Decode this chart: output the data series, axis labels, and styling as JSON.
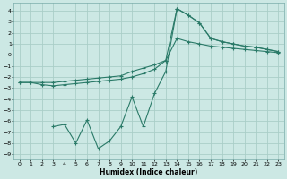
{
  "xlabel": "Humidex (Indice chaleur)",
  "bg_color": "#cce8e4",
  "grid_color": "#aacec8",
  "line_color": "#2a7a68",
  "xlim": [
    -0.5,
    23.5
  ],
  "ylim": [
    -9.5,
    4.7
  ],
  "xticks": [
    0,
    1,
    2,
    3,
    4,
    5,
    6,
    7,
    8,
    9,
    10,
    11,
    12,
    13,
    14,
    15,
    16,
    17,
    18,
    19,
    20,
    21,
    22,
    23
  ],
  "yticks": [
    4,
    3,
    2,
    1,
    0,
    -1,
    -2,
    -3,
    -4,
    -5,
    -6,
    -7,
    -8,
    -9
  ],
  "line1_x": [
    0,
    1,
    2,
    3,
    4,
    5,
    6,
    7,
    8,
    9,
    10,
    11,
    12,
    13,
    14,
    15,
    16,
    17,
    18,
    19,
    20,
    21,
    22,
    23
  ],
  "line1_y": [
    -2.5,
    -2.5,
    -2.7,
    -2.8,
    -2.7,
    -2.6,
    -2.5,
    -2.4,
    -2.3,
    -2.2,
    -2.0,
    -1.7,
    -1.3,
    -0.5,
    4.2,
    3.6,
    2.9,
    1.5,
    1.2,
    1.0,
    0.8,
    0.7,
    0.5,
    0.3
  ],
  "line2_x": [
    0,
    1,
    2,
    3,
    4,
    5,
    6,
    7,
    8,
    9,
    10,
    11,
    12,
    13,
    14,
    15,
    16,
    17,
    18,
    19,
    20,
    21,
    22,
    23
  ],
  "line2_y": [
    -2.5,
    -2.5,
    -2.5,
    -2.5,
    -2.4,
    -2.3,
    -2.2,
    -2.1,
    -2.0,
    -1.9,
    -1.5,
    -1.2,
    -0.9,
    -0.5,
    1.5,
    1.2,
    1.0,
    0.8,
    0.7,
    0.6,
    0.5,
    0.4,
    0.3,
    0.2
  ],
  "line3_x": [
    3,
    4,
    5,
    6,
    7,
    8,
    9,
    10,
    11,
    12,
    13,
    14,
    15,
    16,
    17,
    18,
    19,
    20,
    21,
    22,
    23
  ],
  "line3_y": [
    -6.5,
    -6.3,
    -8.0,
    -5.9,
    -8.5,
    -7.8,
    -6.5,
    -3.8,
    -6.5,
    -3.5,
    -1.5,
    4.2,
    3.6,
    2.9,
    1.5,
    1.2,
    1.0,
    0.8,
    0.7,
    0.5,
    0.3
  ]
}
